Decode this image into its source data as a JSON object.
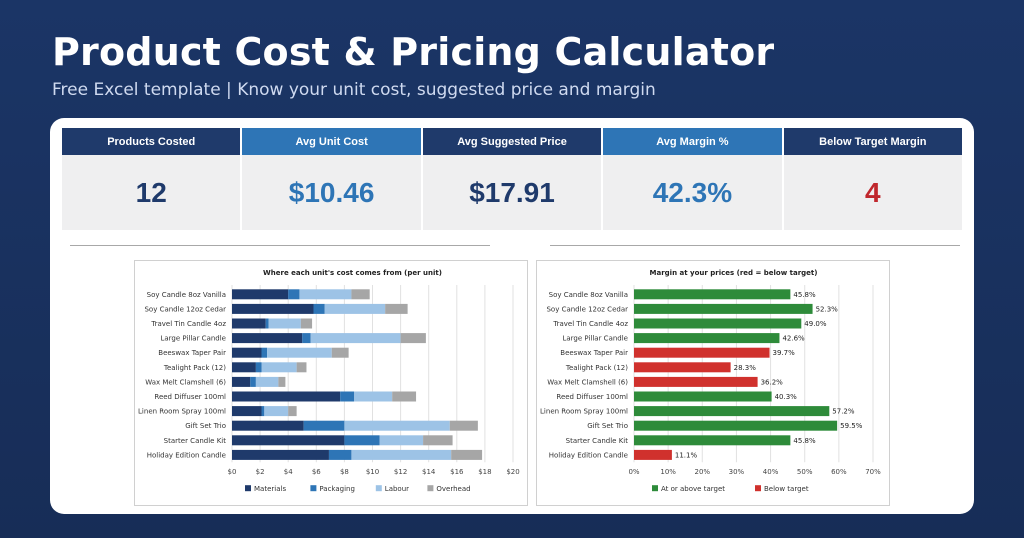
{
  "header": {
    "title": "Product Cost & Pricing Calculator",
    "subtitle": "Free Excel template  |  Know your unit cost, suggested price and margin"
  },
  "kpis": [
    {
      "label": "Products Costed",
      "value": "12",
      "color": "#1f3a6b"
    },
    {
      "label": "Avg Unit Cost",
      "value": "$10.46",
      "color": "#2e75b6"
    },
    {
      "label": "Avg Suggested Price",
      "value": "$17.91",
      "color": "#1f3a6b"
    },
    {
      "label": "Avg Margin %",
      "value": "42.3%",
      "color": "#2e75b6"
    },
    {
      "label": "Below Target Margin",
      "value": "4",
      "color": "#c0272d"
    }
  ],
  "colors": {
    "materials": "#1f3a6b",
    "packaging": "#2e75b6",
    "labour": "#9dc3e6",
    "overhead": "#a6a6a6",
    "at_or_above": "#2e8b3a",
    "below": "#d0312d"
  },
  "chart_data": [
    {
      "type": "bar",
      "orientation": "horizontal",
      "stacked": true,
      "title": "Where each unit's cost comes from (per unit)",
      "categories": [
        "Soy Candle 8oz Vanilla",
        "Soy Candle 12oz Cedar",
        "Travel Tin Candle 4oz",
        "Large Pillar Candle",
        "Beeswax Taper Pair",
        "Tealight Pack (12)",
        "Wax Melt Clamshell (6)",
        "Reed Diffuser 100ml",
        "Linen Room Spray 100ml",
        "Gift Set Trio",
        "Starter Candle Kit",
        "Holiday Edition Candle"
      ],
      "series": [
        {
          "name": "Materials",
          "values": [
            4.0,
            5.8,
            2.4,
            5.0,
            2.1,
            1.7,
            1.3,
            7.7,
            2.1,
            5.1,
            8.0,
            6.9
          ]
        },
        {
          "name": "Packaging",
          "values": [
            0.8,
            0.8,
            0.2,
            0.6,
            0.4,
            0.4,
            0.4,
            1.0,
            0.2,
            2.9,
            2.5,
            1.6
          ]
        },
        {
          "name": "Labour",
          "values": [
            3.7,
            4.3,
            2.3,
            6.4,
            4.6,
            2.5,
            1.6,
            2.7,
            1.7,
            7.5,
            3.1,
            7.1
          ]
        },
        {
          "name": "Overhead",
          "values": [
            1.3,
            1.6,
            0.8,
            1.8,
            1.2,
            0.7,
            0.5,
            1.7,
            0.6,
            2.0,
            2.1,
            2.2
          ]
        }
      ],
      "xlim": [
        0,
        20
      ],
      "xticks": [
        "$0",
        "$2",
        "$4",
        "$6",
        "$8",
        "$10",
        "$12",
        "$14",
        "$16",
        "$18",
        "$20"
      ],
      "grid": true,
      "legend": "bottom"
    },
    {
      "type": "bar",
      "orientation": "horizontal",
      "title": "Margin at your prices (red = below target)",
      "categories": [
        "Soy Candle 8oz Vanilla",
        "Soy Candle 12oz Cedar",
        "Travel Tin Candle 4oz",
        "Large Pillar Candle",
        "Beeswax Taper Pair",
        "Tealight Pack (12)",
        "Wax Melt Clamshell (6)",
        "Reed Diffuser 100ml",
        "Linen Room Spray 100ml",
        "Gift Set Trio",
        "Starter Candle Kit",
        "Holiday Edition Candle"
      ],
      "values": [
        45.8,
        52.3,
        49.0,
        42.6,
        39.7,
        28.3,
        36.2,
        40.3,
        57.2,
        59.5,
        45.8,
        11.1
      ],
      "data_labels": [
        "45.8%",
        "52.3%",
        "49.0%",
        "42.6%",
        "39.7%",
        "28.3%",
        "36.2%",
        "40.3%",
        "57.2%",
        "59.5%",
        "45.8%",
        "11.1%"
      ],
      "status": [
        "above",
        "above",
        "above",
        "above",
        "below",
        "below",
        "below",
        "above",
        "above",
        "above",
        "above",
        "below"
      ],
      "series": [
        {
          "name": "At or above target"
        },
        {
          "name": "Below target"
        }
      ],
      "xlim": [
        0,
        70
      ],
      "xticks": [
        "0%",
        "10%",
        "20%",
        "30%",
        "40%",
        "50%",
        "60%",
        "70%"
      ],
      "grid": true,
      "legend": "bottom"
    }
  ]
}
